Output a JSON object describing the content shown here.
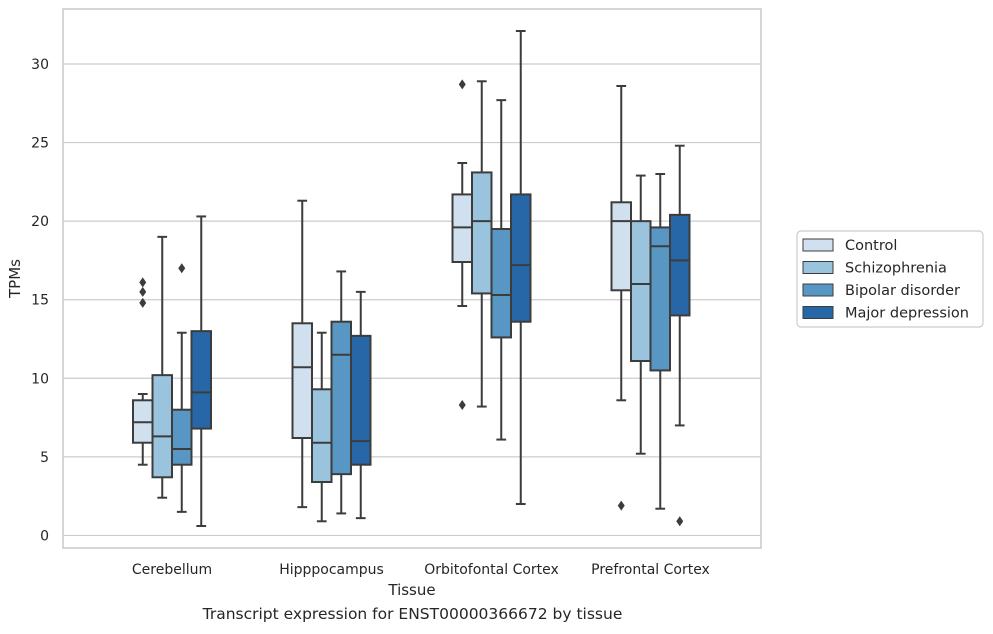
{
  "caption": "Transcript expression for ENST00000366672 by tissue",
  "chart_data": {
    "type": "box",
    "xlabel": "Tissue",
    "ylabel": "TPMs",
    "ylim": [
      -0.8,
      33.5
    ],
    "yticks": [
      0,
      5,
      10,
      15,
      20,
      25,
      30
    ],
    "grid": "horizontal",
    "legend_position": "right",
    "categories": [
      "Cerebellum",
      "Hipppocampus",
      "Orbitofontal Cortex",
      "Prefrontal Cortex"
    ],
    "series": [
      {
        "name": "Control",
        "color": "#d1e0ef",
        "boxes": [
          {
            "whisker_low": 4.5,
            "q1": 5.9,
            "median": 7.2,
            "q3": 8.6,
            "whisker_high": 9.0,
            "outliers": [
              14.8,
              15.5,
              16.1
            ]
          },
          {
            "whisker_low": 1.8,
            "q1": 6.2,
            "median": 10.7,
            "q3": 13.5,
            "whisker_high": 21.3,
            "outliers": []
          },
          {
            "whisker_low": 14.6,
            "q1": 17.4,
            "median": 19.6,
            "q3": 21.7,
            "whisker_high": 23.7,
            "outliers": [
              8.3,
              28.7
            ]
          },
          {
            "whisker_low": 8.6,
            "q1": 15.6,
            "median": 20.0,
            "q3": 21.2,
            "whisker_high": 28.6,
            "outliers": [
              1.9
            ]
          }
        ]
      },
      {
        "name": "Schizophrenia",
        "color": "#9ac3dd",
        "boxes": [
          {
            "whisker_low": 2.4,
            "q1": 3.7,
            "median": 6.3,
            "q3": 10.2,
            "whisker_high": 19.0,
            "outliers": []
          },
          {
            "whisker_low": 0.9,
            "q1": 3.4,
            "median": 5.9,
            "q3": 9.3,
            "whisker_high": 12.9,
            "outliers": []
          },
          {
            "whisker_low": 8.2,
            "q1": 15.4,
            "median": 20.0,
            "q3": 23.1,
            "whisker_high": 28.9,
            "outliers": []
          },
          {
            "whisker_low": 5.2,
            "q1": 11.1,
            "median": 16.0,
            "q3": 20.0,
            "whisker_high": 22.9,
            "outliers": []
          }
        ]
      },
      {
        "name": "Bipolar disorder",
        "color": "#5897c4",
        "boxes": [
          {
            "whisker_low": 1.5,
            "q1": 4.5,
            "median": 5.5,
            "q3": 8.0,
            "whisker_high": 12.9,
            "outliers": [
              17.0
            ]
          },
          {
            "whisker_low": 1.4,
            "q1": 3.9,
            "median": 11.5,
            "q3": 13.6,
            "whisker_high": 16.8,
            "outliers": []
          },
          {
            "whisker_low": 6.1,
            "q1": 12.6,
            "median": 15.3,
            "q3": 19.5,
            "whisker_high": 27.7,
            "outliers": []
          },
          {
            "whisker_low": 1.7,
            "q1": 10.5,
            "median": 18.4,
            "q3": 19.6,
            "whisker_high": 23.0,
            "outliers": []
          }
        ]
      },
      {
        "name": "Major depression",
        "color": "#2767a8",
        "boxes": [
          {
            "whisker_low": 0.6,
            "q1": 6.8,
            "median": 9.1,
            "q3": 13.0,
            "whisker_high": 20.3,
            "outliers": []
          },
          {
            "whisker_low": 1.1,
            "q1": 4.5,
            "median": 6.0,
            "q3": 12.7,
            "whisker_high": 15.5,
            "outliers": []
          },
          {
            "whisker_low": 2.0,
            "q1": 13.6,
            "median": 17.2,
            "q3": 21.7,
            "whisker_high": 32.1,
            "outliers": []
          },
          {
            "whisker_low": 7.0,
            "q1": 14.0,
            "median": 17.5,
            "q3": 20.4,
            "whisker_high": 24.8,
            "outliers": [
              0.9
            ]
          }
        ]
      }
    ]
  }
}
